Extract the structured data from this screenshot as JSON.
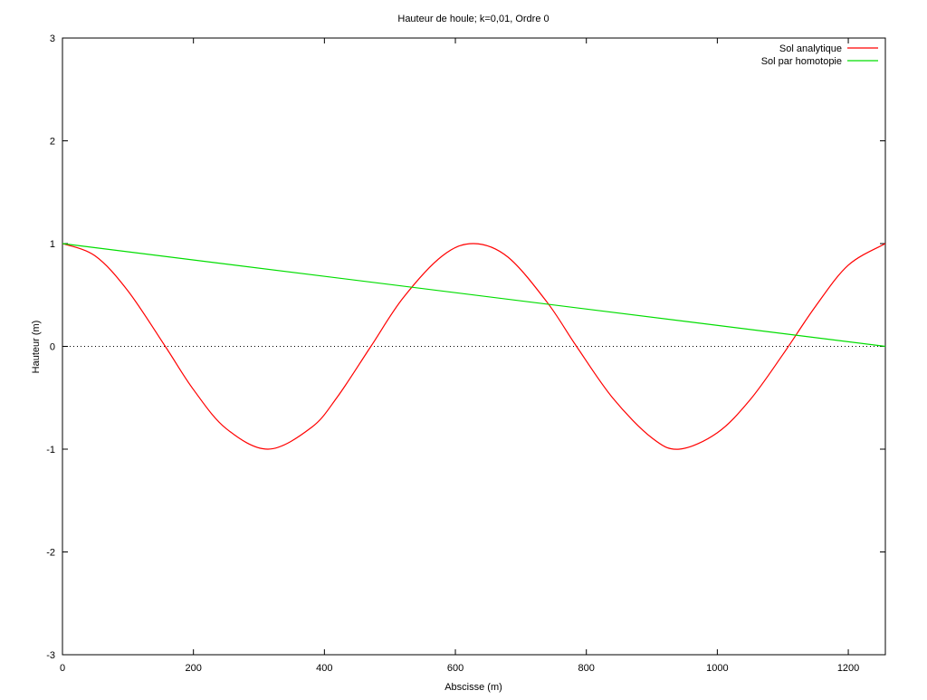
{
  "chart_data": {
    "type": "line",
    "title": "Hauteur de houle; k=0,01, Ordre 0",
    "xlabel": "Abscisse (m)",
    "ylabel": "Hauteur (m)",
    "xlim": [
      0,
      1256.6
    ],
    "ylim": [
      -3,
      3
    ],
    "xticks": [
      0,
      200,
      400,
      600,
      800,
      1000,
      1200
    ],
    "xtick_labels": [
      "0",
      "200",
      "400",
      "600",
      "800",
      "1000",
      "1200"
    ],
    "yticks": [
      -3,
      -2,
      -1,
      0,
      1,
      2,
      3
    ],
    "ytick_labels": [
      "-3",
      "-2",
      "-1",
      "0",
      "1",
      "2",
      "3"
    ],
    "grid": false,
    "zero_line": true,
    "legend_position": "top-right",
    "series": [
      {
        "name": "Sol analytique",
        "color": "#ff0000",
        "x": [
          0,
          50,
          100,
          157,
          200,
          250,
          314,
          380,
          420,
          471,
          520,
          580,
          628,
          680,
          740,
          785,
          840,
          900,
          942,
          1000,
          1050,
          1100,
          1150,
          1200,
          1256.6
        ],
        "y": [
          1.0,
          0.88,
          0.54,
          0.0,
          -0.42,
          -0.8,
          -1.0,
          -0.79,
          -0.49,
          0.0,
          0.47,
          0.88,
          1.0,
          0.87,
          0.43,
          0.0,
          -0.5,
          -0.89,
          -1.0,
          -0.84,
          -0.52,
          -0.08,
          0.39,
          0.79,
          1.0
        ]
      },
      {
        "name": "Sol par homotopie",
        "color": "#00dd00",
        "x": [
          0,
          1256.6
        ],
        "y": [
          1.0,
          0.0
        ]
      }
    ]
  }
}
